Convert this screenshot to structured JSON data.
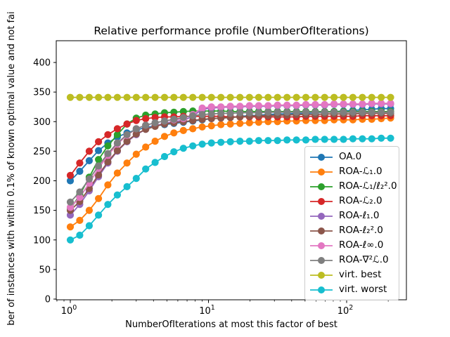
{
  "title": "Relative performance profile (NumberOfIterations)",
  "xlabel": "NumberOfIterations at most this factor of best",
  "ylabel": "ber of instances with within 0.1% of known optimal value and not fai",
  "axes": {
    "x_scale": "log",
    "x_major_ticks": [
      {
        "value": 1,
        "base": "10",
        "exp": "0"
      },
      {
        "value": 10,
        "base": "10",
        "exp": "1"
      },
      {
        "value": 100,
        "base": "10",
        "exp": "2"
      }
    ],
    "x_minor_ticks": [
      0.8,
      0.9,
      2,
      3,
      4,
      5,
      6,
      7,
      8,
      9,
      20,
      30,
      40,
      50,
      60,
      70,
      80,
      90,
      200
    ],
    "y_ticks": [
      0,
      50,
      100,
      150,
      200,
      250,
      300,
      350,
      400
    ],
    "xlim": [
      0.79,
      272
    ],
    "ylim": [
      0,
      437
    ],
    "grid": false,
    "legend_position": "lower right"
  },
  "chart_data": {
    "type": "line",
    "marker": "circle",
    "x": [
      1.0,
      1.17,
      1.37,
      1.6,
      1.87,
      2.19,
      2.57,
      3.0,
      3.51,
      4.11,
      4.81,
      5.62,
      6.58,
      7.7,
      9.01,
      10.5,
      12.3,
      14.4,
      16.9,
      19.8,
      23.1,
      27.0,
      31.6,
      37.0,
      43.3,
      50.7,
      59.3,
      69.3,
      81.1,
      94.9,
      111,
      130,
      152,
      178,
      208
    ],
    "series": [
      {
        "name": "OA.0",
        "color": "#1f77b4",
        "values": [
          200,
          216,
          234,
          251,
          264,
          274,
          281,
          286,
          290,
          293,
          295,
          297,
          299,
          301,
          303,
          305,
          306,
          307,
          309,
          310,
          311,
          312,
          313,
          313,
          314,
          314,
          315,
          316,
          317,
          318,
          319,
          320,
          321,
          322,
          322
        ]
      },
      {
        "name": "ROA-ℒ₁.0",
        "color": "#ff7f0e",
        "values": [
          122,
          133,
          150,
          170,
          193,
          213,
          230,
          245,
          257,
          267,
          275,
          281,
          285,
          288,
          291,
          293,
          295,
          296,
          297,
          298,
          299,
          300,
          300,
          301,
          301,
          302,
          302,
          302,
          303,
          303,
          303,
          304,
          304,
          305,
          306
        ]
      },
      {
        "name": "ROA-ℒ₁/ℓ₂².0",
        "color": "#2ca02c",
        "values": [
          152,
          176,
          206,
          236,
          259,
          278,
          296,
          306,
          311,
          313,
          315,
          316,
          317,
          318,
          318,
          318,
          318,
          317,
          317,
          317,
          317,
          317,
          317,
          317,
          317,
          317,
          317,
          317,
          317,
          317,
          317,
          317,
          317,
          317,
          317
        ]
      },
      {
        "name": "ROA-ℒ₂.0",
        "color": "#d62728",
        "values": [
          209,
          230,
          250,
          266,
          278,
          288,
          296,
          302,
          305,
          307,
          308,
          308,
          309,
          309,
          309,
          309,
          309,
          308,
          308,
          308,
          308,
          308,
          308,
          308,
          308,
          309,
          309,
          309,
          309,
          309,
          309,
          310,
          310,
          310,
          310
        ]
      },
      {
        "name": "ROA-ℓ₁.0",
        "color": "#9467bd",
        "values": [
          142,
          160,
          183,
          207,
          230,
          250,
          266,
          278,
          287,
          293,
          297,
          300,
          302,
          309,
          321,
          323,
          324,
          325,
          325,
          326,
          326,
          326,
          327,
          327,
          327,
          328,
          328,
          328,
          329,
          329,
          329,
          329,
          330,
          330,
          330
        ]
      },
      {
        "name": "ROA-ℓ₂².0",
        "color": "#8c564b",
        "values": [
          150,
          165,
          187,
          210,
          232,
          251,
          267,
          279,
          287,
          292,
          296,
          298,
          300,
          302,
          304,
          305,
          306,
          307,
          308,
          309,
          310,
          310,
          311,
          311,
          312,
          312,
          312,
          313,
          313,
          313,
          313,
          314,
          314,
          314,
          314
        ]
      },
      {
        "name": "ROA-ℓ∞.0",
        "color": "#e377c2",
        "values": [
          155,
          172,
          196,
          221,
          243,
          262,
          277,
          288,
          294,
          298,
          301,
          303,
          305,
          312,
          323,
          325,
          325,
          326,
          326,
          327,
          327,
          327,
          328,
          328,
          328,
          329,
          329,
          329,
          330,
          330,
          330,
          330,
          331,
          331,
          331
        ]
      },
      {
        "name": "ROA-∇²ℒ.0",
        "color": "#7f7f7f",
        "values": [
          164,
          181,
          203,
          225,
          246,
          264,
          278,
          288,
          294,
          298,
          301,
          304,
          307,
          310,
          312,
          313,
          314,
          314,
          315,
          315,
          315,
          316,
          316,
          316,
          316,
          316,
          316,
          316,
          316,
          316,
          316,
          316,
          316,
          316,
          316
        ]
      },
      {
        "name": "virt. best",
        "color": "#bcbd22",
        "values": [
          341,
          341,
          341,
          341,
          341,
          341,
          341,
          341,
          341,
          341,
          341,
          341,
          341,
          341,
          341,
          341,
          341,
          341,
          341,
          341,
          341,
          341,
          341,
          341,
          341,
          341,
          341,
          341,
          341,
          341,
          341,
          341,
          341,
          341,
          341
        ]
      },
      {
        "name": "virt. worst",
        "color": "#17becf",
        "values": [
          100,
          108,
          124,
          142,
          160,
          176,
          190,
          204,
          220,
          231,
          241,
          249,
          255,
          259,
          262,
          264,
          265,
          266,
          267,
          267,
          268,
          268,
          268,
          269,
          269,
          269,
          270,
          270,
          270,
          270,
          271,
          271,
          271,
          272,
          272
        ]
      }
    ]
  }
}
